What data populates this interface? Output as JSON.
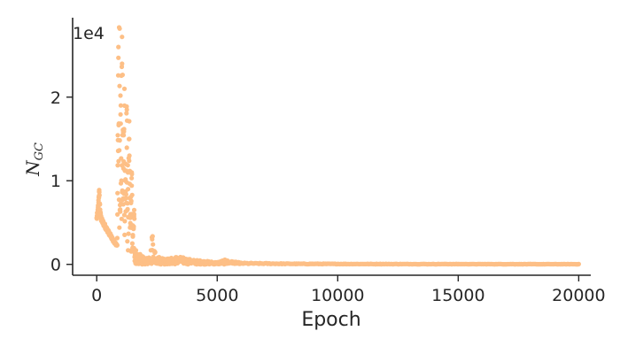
{
  "chart_data": {
    "type": "scatter",
    "title": "",
    "xlabel": "Epoch",
    "ylabel": "N",
    "ylabel_subscript": "GC",
    "y_offset_label": "1e4",
    "xlim": [
      -1000,
      20500
    ],
    "ylim": [
      -1300,
      29500
    ],
    "x_ticks": [
      0,
      5000,
      10000,
      15000,
      20000
    ],
    "x_tick_labels": [
      "0",
      "5000",
      "10000",
      "15000",
      "20000"
    ],
    "y_ticks": [
      0,
      10000,
      20000
    ],
    "y_tick_labels": [
      "0",
      "1",
      "2"
    ],
    "grid": false,
    "legend": "none",
    "color": "#fdbf86",
    "series": [
      {
        "description_points": [
          [
            0,
            5500
          ],
          [
            50,
            6400
          ],
          [
            100,
            8700
          ],
          [
            150,
            6000
          ],
          [
            200,
            5300
          ],
          [
            300,
            4800
          ],
          [
            400,
            4300
          ],
          [
            500,
            3800
          ],
          [
            600,
            3300
          ],
          [
            700,
            2800
          ],
          [
            800,
            2400
          ],
          [
            850,
            2300
          ],
          [
            900,
            26000
          ],
          [
            950,
            28200
          ],
          [
            1000,
            19000
          ],
          [
            1050,
            24000
          ],
          [
            1100,
            16000
          ],
          [
            1150,
            21000
          ],
          [
            1200,
            12000
          ],
          [
            1250,
            18500
          ],
          [
            1300,
            9000
          ],
          [
            1350,
            15000
          ],
          [
            1400,
            6000
          ],
          [
            1450,
            11000
          ],
          [
            1500,
            3500
          ],
          [
            1550,
            6000
          ],
          [
            1600,
            1500
          ],
          [
            1700,
            800
          ],
          [
            1800,
            900
          ],
          [
            2000,
            500
          ],
          [
            2200,
            600
          ],
          [
            2300,
            3000
          ],
          [
            2500,
            700
          ],
          [
            2800,
            600
          ],
          [
            3000,
            500
          ],
          [
            3300,
            700
          ],
          [
            3600,
            600
          ],
          [
            4000,
            400
          ],
          [
            4500,
            300
          ],
          [
            5000,
            200
          ],
          [
            5300,
            400
          ],
          [
            6000,
            150
          ],
          [
            8000,
            80
          ],
          [
            10000,
            60
          ],
          [
            12000,
            50
          ],
          [
            15000,
            40
          ],
          [
            18000,
            30
          ],
          [
            20000,
            30
          ]
        ]
      }
    ]
  }
}
